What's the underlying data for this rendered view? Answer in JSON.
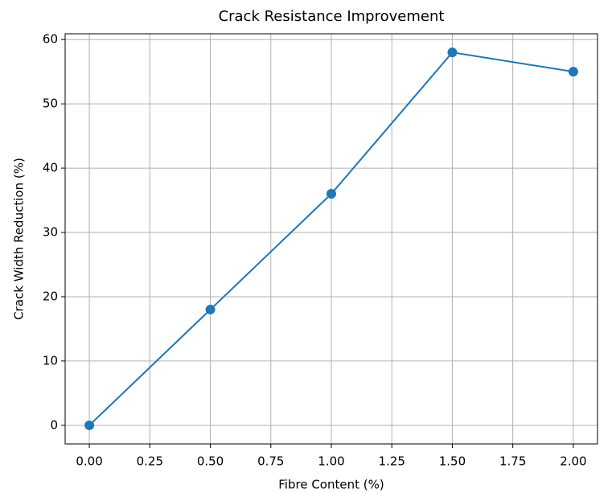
{
  "chart_data": {
    "type": "line",
    "title": "Crack Resistance Improvement",
    "xlabel": "Fibre Content (%)",
    "ylabel": "Crack Width Reduction (%)",
    "x": [
      0,
      0.5,
      1,
      1.5,
      2
    ],
    "series": [
      {
        "name": "Crack Width Reduction",
        "color": "#1f77b4",
        "values": [
          0,
          18,
          36,
          58,
          55
        ]
      }
    ],
    "xlim": [
      -0.1,
      2.1
    ],
    "xticks": [
      {
        "value": 0,
        "label": "0.00"
      },
      {
        "value": 0.25,
        "label": "0.25"
      },
      {
        "value": 0.5,
        "label": "0.50"
      },
      {
        "value": 0.75,
        "label": "0.75"
      },
      {
        "value": 1,
        "label": "1.00"
      },
      {
        "value": 1.25,
        "label": "1.25"
      },
      {
        "value": 1.5,
        "label": "1.50"
      },
      {
        "value": 1.75,
        "label": "1.75"
      },
      {
        "value": 2,
        "label": "2.00"
      }
    ],
    "ylim": [
      -2.9,
      60.9
    ],
    "yticks": [
      0,
      10,
      20,
      30,
      40,
      50,
      60
    ],
    "grid": true
  }
}
